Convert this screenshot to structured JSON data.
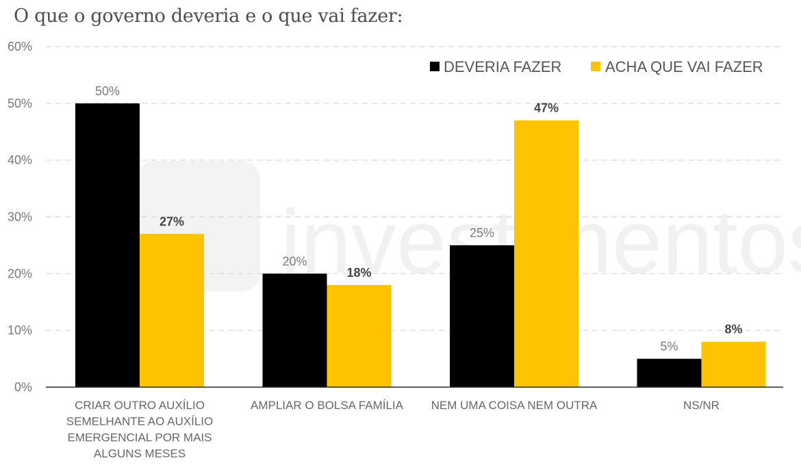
{
  "title": "O que o governo deveria e o que vai fazer:",
  "watermark": "investimentos",
  "colors": {
    "deveria": "#000000",
    "acha": "#FFC300"
  },
  "chart_data": {
    "type": "bar",
    "title": "O que o governo deveria e o que vai fazer:",
    "xlabel": "",
    "ylabel": "",
    "ylim": [
      0,
      60
    ],
    "yticks": [
      "0%",
      "10%",
      "20%",
      "30%",
      "40%",
      "50%",
      "60%"
    ],
    "ytick_values": [
      0,
      10,
      20,
      30,
      40,
      50,
      60
    ],
    "grid": true,
    "legend_position": "top-right",
    "categories": [
      [
        "CRIAR OUTRO AUXÍLIO",
        "SEMELHANTE AO AUXÍLIO",
        "EMERGENCIAL POR MAIS",
        "ALGUNS MESES"
      ],
      [
        "AMPLIAR O BOLSA FAMÍLIA"
      ],
      [
        "NEM UMA COISA NEM OUTRA"
      ],
      [
        "NS/NR"
      ]
    ],
    "series": [
      {
        "name": "DEVERIA FAZER",
        "values": [
          50,
          20,
          25,
          5
        ],
        "labels": [
          "50%",
          "20%",
          "25%",
          "5%"
        ]
      },
      {
        "name": "ACHA QUE VAI FAZER",
        "values": [
          27,
          18,
          47,
          8
        ],
        "labels": [
          "27%",
          "18%",
          "47%",
          "8%"
        ]
      }
    ]
  }
}
